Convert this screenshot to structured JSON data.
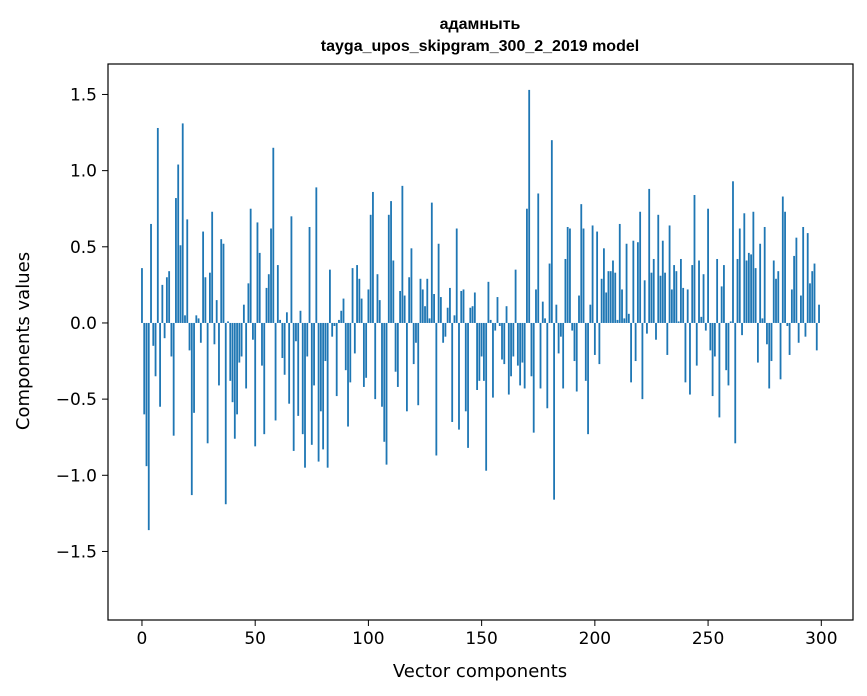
{
  "chart_data": {
    "type": "bar",
    "title_line1": "адамныть",
    "title_line2": "tayga_upos_skipgram_300_2_2019 model",
    "xlabel": "Vector components",
    "ylabel": "Components values",
    "xlim": [
      -15,
      314
    ],
    "ylim": [
      -1.95,
      1.7
    ],
    "xticks": [
      0,
      50,
      100,
      150,
      200,
      250,
      300
    ],
    "xtick_labels": [
      "0",
      "50",
      "100",
      "150",
      "200",
      "250",
      "300"
    ],
    "yticks": [
      -1.5,
      -1.0,
      -0.5,
      0.0,
      0.5,
      1.0,
      1.5
    ],
    "ytick_labels": [
      "−1.5",
      "−1.0",
      "−0.5",
      "0.0",
      "0.5",
      "1.0",
      "1.5"
    ],
    "bar_color": "#1f77b4",
    "values": [
      0.36,
      -0.6,
      -0.94,
      -1.36,
      0.65,
      -0.15,
      -0.35,
      1.28,
      -0.55,
      0.25,
      -0.1,
      0.3,
      0.34,
      -0.22,
      -0.74,
      0.82,
      1.04,
      0.51,
      1.31,
      0.05,
      0.68,
      -0.18,
      -1.13,
      -0.59,
      0.05,
      0.03,
      -0.13,
      0.6,
      0.3,
      -0.79,
      0.33,
      0.73,
      -0.14,
      0.15,
      -0.41,
      0.55,
      0.52,
      -1.19,
      0.01,
      -0.38,
      -0.52,
      -0.76,
      -0.6,
      -0.26,
      -0.22,
      0.12,
      -0.43,
      0.26,
      0.75,
      -0.11,
      -0.81,
      0.66,
      0.46,
      -0.28,
      -0.73,
      0.23,
      0.32,
      0.62,
      1.15,
      -0.64,
      0.38,
      0.02,
      -0.23,
      -0.34,
      0.07,
      -0.53,
      0.7,
      -0.84,
      -0.12,
      -0.61,
      0.08,
      -0.73,
      -0.95,
      -0.22,
      0.63,
      -0.8,
      -0.41,
      0.89,
      -0.91,
      -0.58,
      -0.83,
      -0.25,
      -0.95,
      0.35,
      -0.09,
      -0.02,
      -0.48,
      0.02,
      0.08,
      0.16,
      -0.31,
      -0.68,
      -0.39,
      0.36,
      -0.2,
      0.38,
      0.29,
      0.16,
      -0.42,
      -0.36,
      0.22,
      0.71,
      0.86,
      -0.5,
      0.32,
      0.15,
      -0.55,
      -0.78,
      -0.93,
      0.71,
      0.8,
      0.41,
      -0.32,
      -0.42,
      0.21,
      0.9,
      0.18,
      -0.58,
      0.3,
      0.49,
      -0.27,
      -0.13,
      -0.54,
      0.29,
      0.22,
      0.11,
      0.29,
      0.03,
      0.79,
      0.19,
      -0.87,
      0.52,
      0.17,
      -0.13,
      -0.09,
      0.1,
      0.23,
      -0.65,
      0.05,
      0.62,
      -0.7,
      0.21,
      0.22,
      -0.58,
      -0.82,
      0.1,
      0.11,
      0.2,
      -0.44,
      -0.38,
      -0.22,
      -0.38,
      -0.97,
      0.27,
      0.02,
      -0.49,
      -0.05,
      0.17,
      -0.02,
      -0.24,
      -0.27,
      0.11,
      -0.47,
      -0.35,
      -0.22,
      0.35,
      -0.28,
      -0.41,
      -0.26,
      -0.43,
      0.75,
      1.53,
      -0.35,
      -0.72,
      0.22,
      0.85,
      -0.43,
      0.14,
      0.03,
      -0.56,
      0.39,
      1.2,
      -1.16,
      0.12,
      -0.2,
      -0.09,
      -0.43,
      0.42,
      0.63,
      0.62,
      -0.05,
      -0.25,
      -0.45,
      0.18,
      0.78,
      0.62,
      -0.38,
      -0.73,
      0.12,
      0.64,
      -0.21,
      0.6,
      -0.27,
      0.29,
      0.49,
      0.2,
      0.34,
      0.34,
      0.41,
      0.33,
      0.02,
      0.65,
      0.22,
      0.03,
      0.52,
      0.06,
      -0.39,
      0.54,
      -0.25,
      0.53,
      0.73,
      -0.5,
      0.28,
      -0.07,
      0.88,
      0.33,
      0.42,
      -0.11,
      0.71,
      0.31,
      0.54,
      0.33,
      -0.21,
      0.64,
      0.22,
      0.38,
      0.34,
      0.01,
      0.42,
      0.23,
      -0.39,
      0.22,
      -0.47,
      0.38,
      0.84,
      -0.28,
      0.41,
      0.04,
      0.32,
      -0.05,
      0.75,
      -0.18,
      -0.48,
      -0.22,
      0.42,
      -0.62,
      0.24,
      0.38,
      -0.31,
      -0.41,
      0.01,
      0.93,
      -0.79,
      0.42,
      0.62,
      -0.08,
      0.72,
      0.41,
      0.46,
      0.45,
      0.73,
      0.36,
      -0.26,
      0.52,
      0.03,
      0.63,
      -0.14,
      -0.43,
      -0.25,
      0.41,
      0.29,
      0.34,
      -0.37,
      0.83,
      0.73,
      -0.02,
      -0.21,
      0.22,
      0.44,
      0.56,
      -0.13,
      0.18,
      0.63,
      -0.09,
      0.59,
      0.26,
      0.34,
      0.39,
      -0.18,
      0.12
    ]
  }
}
